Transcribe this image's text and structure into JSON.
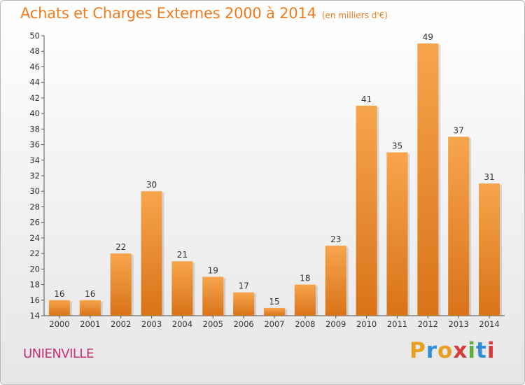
{
  "header": {
    "title": "Achats et Charges Externes 2000 à 2014",
    "subtitle": "(en milliers d'€)"
  },
  "footer": {
    "commune": "UNIENVILLE",
    "brand_letters": [
      "P",
      "r",
      "o",
      "x",
      "i",
      "t",
      "i"
    ]
  },
  "colors": {
    "title": "#f07b1c",
    "commune": "#c8307a",
    "bar_top": "#f7a54c",
    "bar_bottom": "#d97318",
    "brand_letters": [
      "#e8a020",
      "#2f8ed8",
      "#e8a020",
      "#d63a3a",
      "#5cae3a",
      "#2f8ed8",
      "#d63a3a"
    ]
  },
  "chart_data": {
    "type": "bar",
    "categories": [
      "2000",
      "2001",
      "2002",
      "2003",
      "2004",
      "2005",
      "2006",
      "2007",
      "2008",
      "2009",
      "2010",
      "2011",
      "2012",
      "2013",
      "2014"
    ],
    "values": [
      16,
      16,
      22,
      30,
      21,
      19,
      17,
      15,
      18,
      23,
      41,
      35,
      49,
      37,
      31
    ],
    "ylim": [
      14,
      50
    ],
    "yticks": [
      14,
      16,
      18,
      20,
      22,
      24,
      26,
      28,
      30,
      32,
      34,
      36,
      38,
      40,
      42,
      44,
      46,
      48,
      50
    ],
    "xlabel": "",
    "ylabel": "",
    "grid": false,
    "data_labels": true
  }
}
